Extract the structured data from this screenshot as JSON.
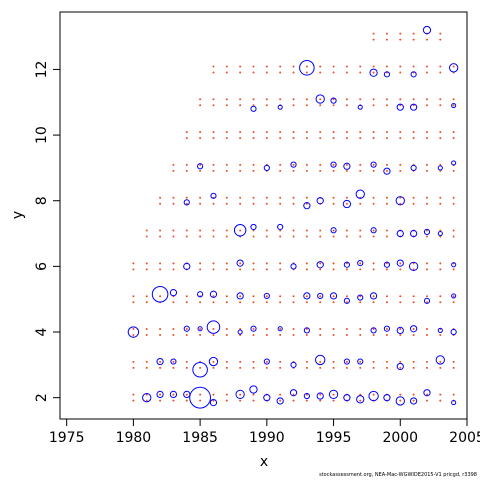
{
  "chart_data": {
    "type": "scatter",
    "title": "",
    "xlabel": "x",
    "ylabel": "y",
    "xlim": [
      1974.5,
      2005
    ],
    "ylim": [
      1.35,
      13.75
    ],
    "x_ticks": [
      1975,
      1980,
      1985,
      1990,
      1995,
      2000,
      2005
    ],
    "y_ticks": [
      2,
      4,
      6,
      8,
      10,
      12
    ],
    "grid": false,
    "legend": "none",
    "colors": {
      "blue": "#0000ff",
      "red": "#e8502a"
    },
    "series": [
      {
        "color_key": "blue",
        "marker": "open-circle",
        "points": [
          [
            1980,
            4,
            1.0
          ],
          [
            1981,
            2,
            0.8
          ],
          [
            1982,
            5.15,
            1.5
          ],
          [
            1982,
            3.1,
            0.6
          ],
          [
            1982,
            2.1,
            0.6
          ],
          [
            1983,
            5.2,
            0.6
          ],
          [
            1983,
            3.1,
            0.5
          ],
          [
            1983,
            2.1,
            0.6
          ],
          [
            1984,
            7.95,
            0.5
          ],
          [
            1984,
            6,
            0.6
          ],
          [
            1984,
            4.1,
            0.5
          ],
          [
            1984,
            2.1,
            0.6
          ],
          [
            1985,
            9.05,
            0.5
          ],
          [
            1985,
            5.15,
            0.5
          ],
          [
            1985,
            4.1,
            0.4
          ],
          [
            1985,
            2.85,
            1.4
          ],
          [
            1985,
            2,
            2.0
          ],
          [
            1986,
            8.15,
            0.5
          ],
          [
            1986,
            5.15,
            0.6
          ],
          [
            1986,
            4.15,
            1.2
          ],
          [
            1986,
            3.1,
            0.8
          ],
          [
            1986,
            1.85,
            0.6
          ],
          [
            1988,
            7.1,
            1.1
          ],
          [
            1988,
            6.1,
            0.6
          ],
          [
            1988,
            5.1,
            0.6
          ],
          [
            1988,
            4,
            0.4
          ],
          [
            1988,
            2.1,
            0.8
          ],
          [
            1989,
            10.8,
            0.5
          ],
          [
            1989,
            7.2,
            0.5
          ],
          [
            1989,
            4.1,
            0.5
          ],
          [
            1989,
            2.25,
            0.7
          ],
          [
            1990,
            9,
            0.5
          ],
          [
            1990,
            5.1,
            0.5
          ],
          [
            1990,
            3.1,
            0.5
          ],
          [
            1990,
            2,
            0.6
          ],
          [
            1991,
            10.85,
            0.4
          ],
          [
            1991,
            7.2,
            0.5
          ],
          [
            1991,
            4.1,
            0.4
          ],
          [
            1991,
            1.9,
            0.6
          ],
          [
            1992,
            9.1,
            0.5
          ],
          [
            1992,
            6,
            0.5
          ],
          [
            1992,
            3,
            0.5
          ],
          [
            1992,
            2.15,
            0.6
          ],
          [
            1993,
            12.05,
            1.4
          ],
          [
            1993,
            7.85,
            0.6
          ],
          [
            1993,
            5.1,
            0.6
          ],
          [
            1993,
            4.05,
            0.5
          ],
          [
            1993,
            2.05,
            0.5
          ],
          [
            1994,
            11.1,
            0.8
          ],
          [
            1994,
            8,
            0.6
          ],
          [
            1994,
            6.05,
            0.6
          ],
          [
            1994,
            5.1,
            0.5
          ],
          [
            1994,
            3.15,
            0.9
          ],
          [
            1994,
            2.05,
            0.6
          ],
          [
            1995,
            11.05,
            0.5
          ],
          [
            1995,
            9.1,
            0.5
          ],
          [
            1995,
            7.1,
            0.5
          ],
          [
            1995,
            5.1,
            0.6
          ],
          [
            1995,
            2.1,
            0.8
          ],
          [
            1996,
            9.05,
            0.6
          ],
          [
            1996,
            7.9,
            0.7
          ],
          [
            1996,
            6.05,
            0.5
          ],
          [
            1996,
            4.95,
            0.5
          ],
          [
            1996,
            3.1,
            0.5
          ],
          [
            1996,
            2,
            0.6
          ],
          [
            1997,
            10.85,
            0.4
          ],
          [
            1997,
            8.2,
            0.8
          ],
          [
            1997,
            6.1,
            0.5
          ],
          [
            1997,
            5.05,
            0.5
          ],
          [
            1997,
            3.1,
            0.5
          ],
          [
            1997,
            1.95,
            0.7
          ],
          [
            1998,
            11.9,
            0.7
          ],
          [
            1998,
            9.1,
            0.5
          ],
          [
            1998,
            7.1,
            0.5
          ],
          [
            1998,
            5.1,
            0.6
          ],
          [
            1998,
            4.05,
            0.5
          ],
          [
            1998,
            2.05,
            0.9
          ],
          [
            1999,
            11.85,
            0.5
          ],
          [
            1999,
            8.9,
            0.6
          ],
          [
            1999,
            6.05,
            0.5
          ],
          [
            1999,
            4.1,
            0.5
          ],
          [
            1999,
            2,
            0.6
          ],
          [
            2000,
            10.85,
            0.6
          ],
          [
            2000,
            8,
            0.8
          ],
          [
            2000,
            7,
            0.6
          ],
          [
            2000,
            6.1,
            0.6
          ],
          [
            2000,
            4.05,
            0.6
          ],
          [
            2000,
            2.95,
            0.6
          ],
          [
            2000,
            1.9,
            0.8
          ],
          [
            2001,
            11.85,
            0.5
          ],
          [
            2001,
            10.85,
            0.6
          ],
          [
            2001,
            9,
            0.5
          ],
          [
            2001,
            7,
            0.6
          ],
          [
            2001,
            6,
            0.8
          ],
          [
            2001,
            4.1,
            0.6
          ],
          [
            2001,
            1.9,
            0.6
          ],
          [
            2002,
            13.2,
            0.7
          ],
          [
            2002,
            7.05,
            0.5
          ],
          [
            2002,
            4.95,
            0.5
          ],
          [
            2002,
            2.15,
            0.6
          ],
          [
            2003,
            9,
            0.4
          ],
          [
            2003,
            7,
            0.4
          ],
          [
            2003,
            4.05,
            0.4
          ],
          [
            2003,
            3.15,
            0.8
          ],
          [
            2004,
            12.05,
            0.8
          ],
          [
            2004,
            10.9,
            0.4
          ],
          [
            2004,
            9.15,
            0.4
          ],
          [
            2004,
            6.05,
            0.4
          ],
          [
            2004,
            5.1,
            0.4
          ],
          [
            2004,
            4,
            0.5
          ],
          [
            2004,
            1.85,
            0.4
          ]
        ]
      },
      {
        "color_key": "red",
        "marker": "dot",
        "rows": [
          {
            "y": 2,
            "x_start": 1980,
            "x_end": 2004
          },
          {
            "y": 3,
            "x_start": 1980,
            "x_end": 2004
          },
          {
            "y": 4,
            "x_start": 1980,
            "x_end": 2004
          },
          {
            "y": 5,
            "x_start": 1980,
            "x_end": 2004
          },
          {
            "y": 6,
            "x_start": 1980,
            "x_end": 2004
          },
          {
            "y": 7,
            "x_start": 1981,
            "x_end": 2004
          },
          {
            "y": 8,
            "x_start": 1982,
            "x_end": 2004
          },
          {
            "y": 9,
            "x_start": 1983,
            "x_end": 2004
          },
          {
            "y": 10,
            "x_start": 1984,
            "x_end": 2004
          },
          {
            "y": 11,
            "x_start": 1985,
            "x_end": 2004
          },
          {
            "y": 12,
            "x_start": 1986,
            "x_end": 2004
          },
          {
            "y": 13,
            "x_start": 1998,
            "x_end": 2003
          }
        ]
      }
    ]
  },
  "footer": "stockassessment.org, NEA-Mac-WGWIDE2015-V1  pricgd, r3398"
}
